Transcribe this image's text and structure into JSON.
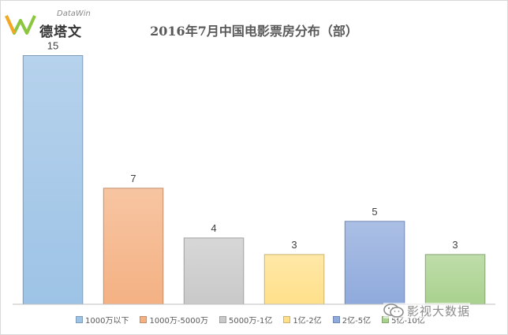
{
  "brand": {
    "name_en": "DataWin",
    "name_cn": "德塔文"
  },
  "watermark": {
    "text": "影视大数据",
    "icon": "wechat-icon"
  },
  "chart_data": {
    "type": "bar",
    "title": "2016年7月中国电影票房分布（部）",
    "categories": [
      "1000万以下",
      "1000万-5000万",
      "5000万-1亿",
      "1亿-2亿",
      "2亿-5亿",
      "5亿-10亿"
    ],
    "values": [
      15,
      7,
      4,
      3,
      5,
      3
    ],
    "ylim": [
      0,
      15.5
    ],
    "grid": false,
    "legend_position": "bottom",
    "colors": [
      "#9dc3e6",
      "#f4b183",
      "#c9c9c9",
      "#ffe08a",
      "#8faadc",
      "#a9d18e"
    ],
    "xlabel": "",
    "ylabel": ""
  }
}
